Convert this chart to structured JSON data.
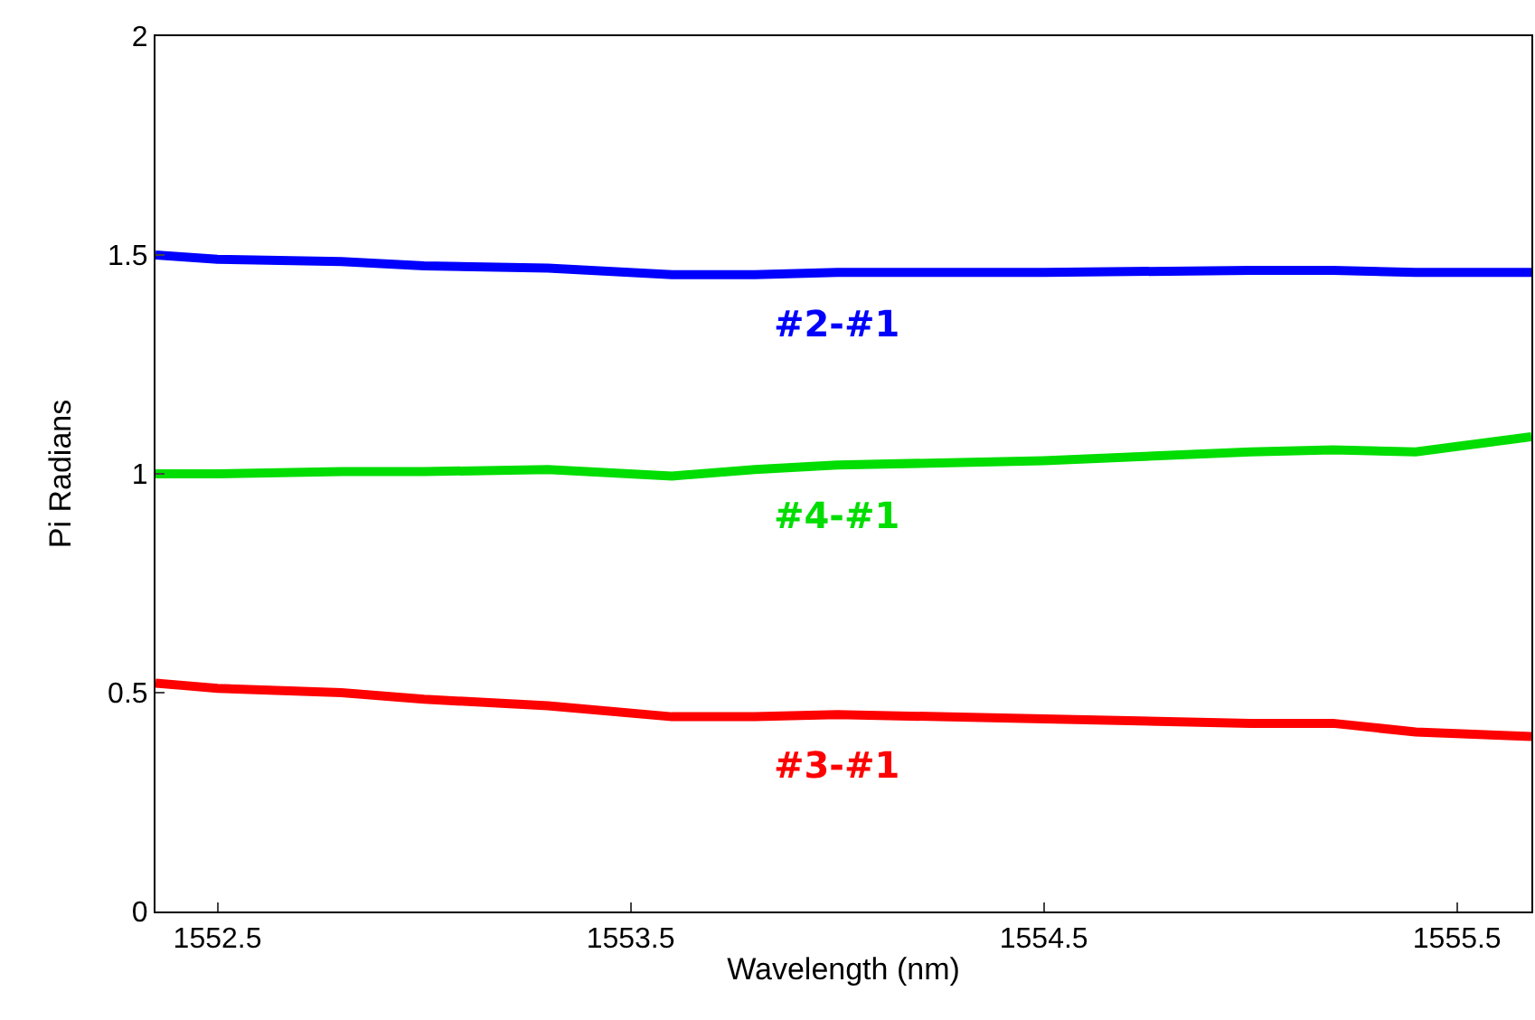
{
  "chart_data": {
    "type": "line",
    "xlabel": "Wavelength (nm)",
    "ylabel": "Pi Radians",
    "xlim": [
      1552.35,
      1555.68
    ],
    "ylim": [
      0,
      2
    ],
    "xticks": [
      1552.5,
      1553.5,
      1554.5,
      1555.5
    ],
    "yticks": [
      0,
      0.5,
      1,
      1.5,
      2
    ],
    "legend": false,
    "marker": "none",
    "line_style": "solid",
    "x": [
      1552.35,
      1552.5,
      1552.8,
      1553.0,
      1553.3,
      1553.6,
      1553.8,
      1554.0,
      1554.5,
      1555.0,
      1555.2,
      1555.4,
      1555.68
    ],
    "series": [
      {
        "name": "#2-#1",
        "color": "#0000ff",
        "values": [
          1.5,
          1.49,
          1.485,
          1.475,
          1.47,
          1.455,
          1.455,
          1.46,
          1.46,
          1.465,
          1.465,
          1.46,
          1.46
        ]
      },
      {
        "name": "#4-#1",
        "color": "#00dd00",
        "values": [
          1.0,
          1.0,
          1.005,
          1.005,
          1.01,
          0.995,
          1.01,
          1.02,
          1.03,
          1.05,
          1.055,
          1.05,
          1.085
        ]
      },
      {
        "name": "#3-#1",
        "color": "#ff0000",
        "values": [
          0.522,
          0.51,
          0.5,
          0.485,
          0.47,
          0.445,
          0.445,
          0.45,
          0.44,
          0.43,
          0.43,
          0.41,
          0.4
        ]
      }
    ]
  }
}
